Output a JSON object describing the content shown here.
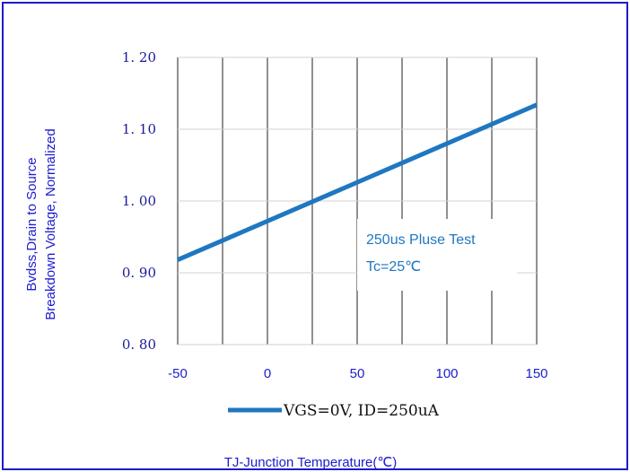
{
  "chart_data": {
    "type": "line",
    "title": "",
    "xlabel": "TJ-Junction Temperature(℃)",
    "ylabel_lines": [
      "Bvdss,Drain to Source",
      "Breakdown Voltage, Normalized"
    ],
    "x_ticks": [
      "-50",
      "0",
      "50",
      "100",
      "150"
    ],
    "y_ticks": [
      "0. 80",
      "0. 90",
      "1. 00",
      "1. 10",
      "1. 20"
    ],
    "xlim": [
      -50,
      150
    ],
    "ylim": [
      0.8,
      1.2
    ],
    "x_grid": [
      -50,
      -25,
      0,
      25,
      50,
      75,
      100,
      125,
      150
    ],
    "grid": true,
    "series": [
      {
        "name": "VGS=0V, ID=250uA",
        "color": "#1f77c0",
        "x": [
          -50,
          150
        ],
        "y": [
          0.918,
          1.134
        ]
      }
    ],
    "annotations": [
      "250us Pluse Test",
      "Tc=25℃"
    ],
    "legend_position": "bottom-center"
  },
  "colors": {
    "frame": "#1c1cc8",
    "grid": "#555555",
    "line": "#1f77c0",
    "axis_text": "#1c1cd0"
  }
}
